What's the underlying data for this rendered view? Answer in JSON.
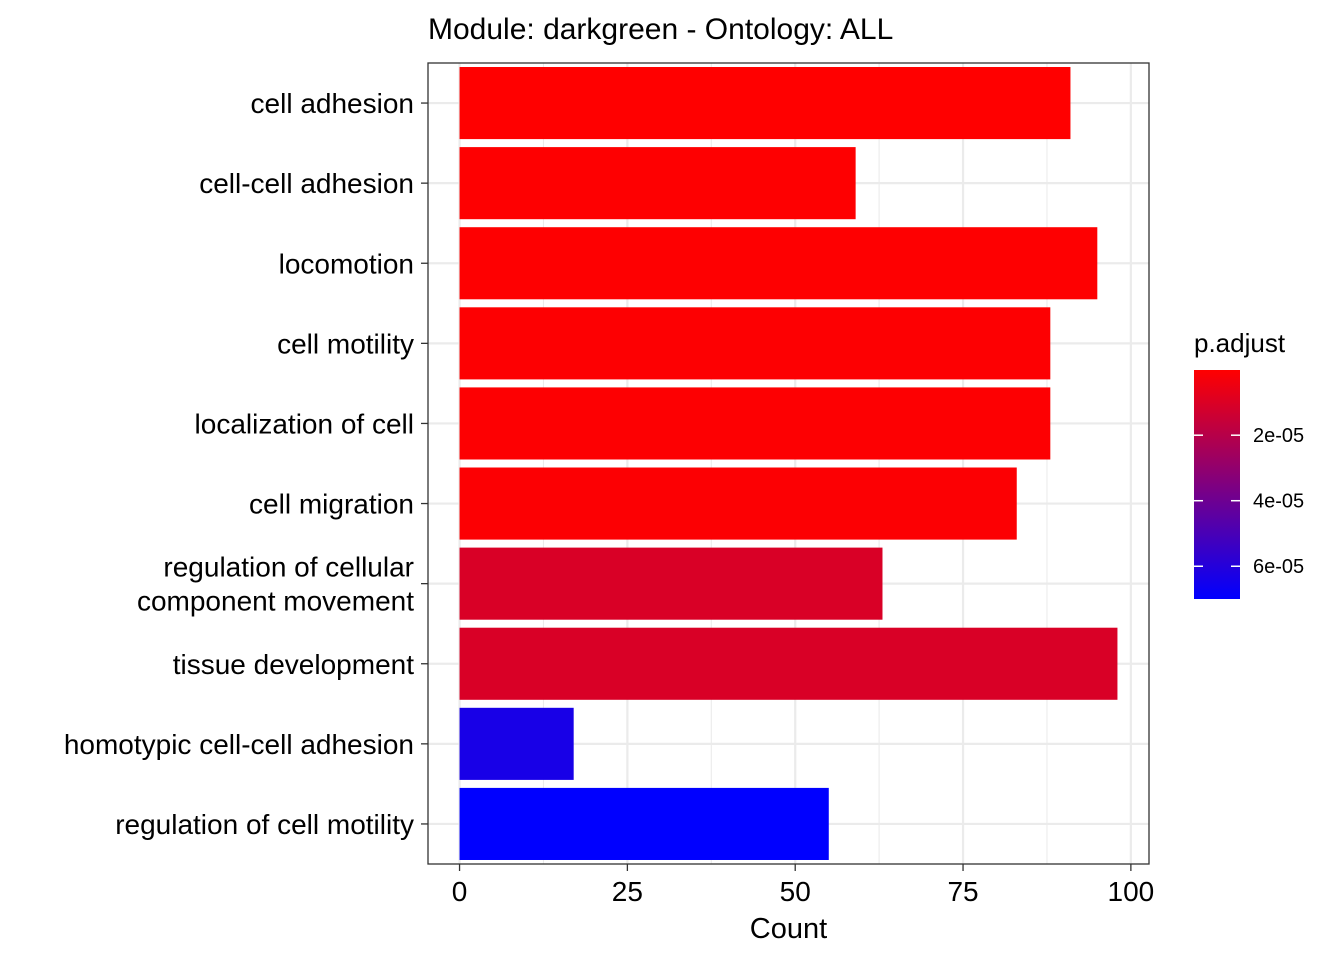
{
  "chart_data": {
    "type": "bar",
    "orientation": "horizontal",
    "title": "Module: darkgreen - Ontology: ALL",
    "xlabel": "Count",
    "ylabel": "",
    "xlim": [
      -4.7,
      102.7
    ],
    "x_ticks": [
      "0",
      "25",
      "50",
      "75",
      "100"
    ],
    "x_tick_values": [
      0,
      25,
      50,
      75,
      100
    ],
    "grid": true,
    "categories": [
      "cell adhesion",
      "cell-cell adhesion",
      "locomotion",
      "cell motility",
      "localization of cell",
      "cell migration",
      "regulation of cellular component movement",
      "tissue development",
      "homotypic cell-cell adhesion",
      "regulation of cell motility"
    ],
    "category_label_lines": [
      [
        "cell adhesion"
      ],
      [
        "cell-cell adhesion"
      ],
      [
        "locomotion"
      ],
      [
        "cell motility"
      ],
      [
        "localization of cell"
      ],
      [
        "cell migration"
      ],
      [
        "regulation of cellular",
        "component movement"
      ],
      [
        "tissue development"
      ],
      [
        "homotypic cell-cell adhesion"
      ],
      [
        "regulation of cell motility"
      ]
    ],
    "values": [
      91,
      59,
      95,
      88,
      88,
      83,
      63,
      98,
      17,
      55
    ],
    "p_adjust": [
      1e-07,
      3e-07,
      4e-07,
      6e-07,
      6e-07,
      1e-06,
      1.05e-05,
      1.05e-05,
      6.35e-05,
      7e-05
    ],
    "legend": {
      "title": "p.adjust",
      "position": "right",
      "low_color": "#ff0000",
      "high_color": "#0000ff",
      "range": [
        1e-07,
        7e-05
      ],
      "ticks": [
        2e-05,
        4e-05,
        6e-05
      ],
      "tick_labels": [
        "2e-05",
        "4e-05",
        "6e-05"
      ]
    }
  }
}
